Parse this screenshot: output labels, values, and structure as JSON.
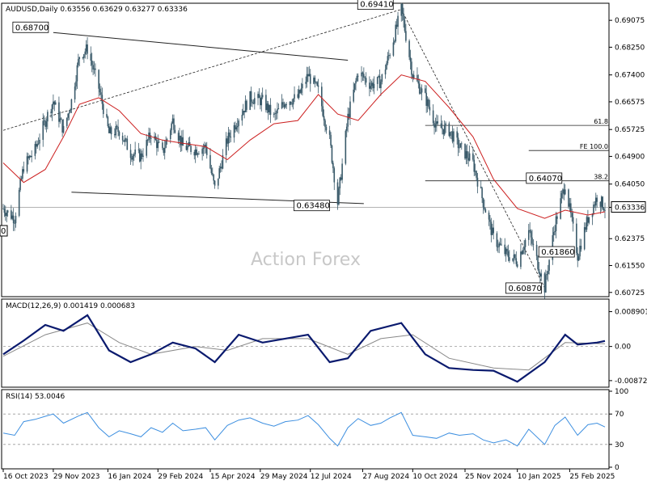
{
  "colors": {
    "candle": "#3a5a6a",
    "ma": "#cc1f1f",
    "macd": "#0a1a6e",
    "signal": "#888888",
    "rsi": "#3d8fe0",
    "grid": "#9a9a9a",
    "border": "#000000",
    "price_line": "#9a9a9a"
  },
  "chart_data": [
    {
      "type": "candlestick",
      "title": "AUDUSD,Daily  0.63556 0.63629 0.63277 0.63336",
      "symbol": "AUDUSD,Daily",
      "ohlc_last": {
        "open": "0.63556",
        "high": "0.63629",
        "low": "0.63277",
        "close": "0.63336"
      },
      "x_ticks": [
        "16 Oct 2023",
        "29 Nov 2023",
        "16 Jan 2024",
        "29 Feb 2024",
        "15 Apr 2024",
        "29 May 2024",
        "12 Jul 2024",
        "27 Aug 2024",
        "10 Oct 2024",
        "25 Nov 2024",
        "10 Jan 2025",
        "25 Feb 2025"
      ],
      "y_ticks": [
        "0.69075",
        "0.68250",
        "0.67400",
        "0.66575",
        "0.65725",
        "0.64900",
        "0.64050",
        "0.63336",
        "0.62375",
        "0.61550",
        "0.60725"
      ],
      "y_tick_values": [
        0.69075,
        0.6825,
        0.674,
        0.66575,
        0.65725,
        0.649,
        0.6405,
        0.63336,
        0.62375,
        0.6155,
        0.60725
      ],
      "ylim": [
        0.6062,
        0.6955
      ],
      "current_price": "0.63336",
      "annotations": [
        {
          "label": "0.68700",
          "date": "2023-11-29",
          "value": 0.687
        },
        {
          "label": "0.69410",
          "date": "2024-09-30",
          "value": 0.6941
        },
        {
          "label": "0.63480",
          "date": "2024-08-05",
          "value": 0.6348
        },
        {
          "label": "0.64070",
          "date": "2025-02-21",
          "value": 0.6407
        },
        {
          "label": "0.61860",
          "date": "2025-03-04",
          "value": 0.6186
        },
        {
          "label": "0.60870",
          "date": "2025-02-03",
          "value": 0.6087
        }
      ],
      "clipped_left_label": "0",
      "levels": [
        {
          "label": "61.8",
          "value": 0.6585
        },
        {
          "label": "FE 100.0",
          "value": 0.6508
        },
        {
          "label": "38.2",
          "value": 0.6415
        }
      ],
      "series": [
        {
          "name": "close",
          "points": [
            [
              "2023-10-16",
              0.633
            ],
            [
              "2023-10-26",
              0.63
            ],
            [
              "2023-11-03",
              0.646
            ],
            [
              "2023-11-13",
              0.651
            ],
            [
              "2023-11-22",
              0.66
            ],
            [
              "2023-11-29",
              0.666
            ],
            [
              "2023-12-01",
              0.664
            ],
            [
              "2023-12-08",
              0.657
            ],
            [
              "2023-12-15",
              0.666
            ],
            [
              "2023-12-22",
              0.68
            ],
            [
              "2023-12-29",
              0.682
            ],
            [
              "2024-01-08",
              0.67
            ],
            [
              "2024-01-17",
              0.656
            ],
            [
              "2024-01-26",
              0.657
            ],
            [
              "2024-02-05",
              0.65
            ],
            [
              "2024-02-14",
              0.649
            ],
            [
              "2024-02-23",
              0.656
            ],
            [
              "2024-03-04",
              0.65
            ],
            [
              "2024-03-13",
              0.66
            ],
            [
              "2024-03-22",
              0.652
            ],
            [
              "2024-04-02",
              0.651
            ],
            [
              "2024-04-11",
              0.652
            ],
            [
              "2024-04-19",
              0.639
            ],
            [
              "2024-04-30",
              0.654
            ],
            [
              "2024-05-10",
              0.661
            ],
            [
              "2024-05-20",
              0.667
            ],
            [
              "2024-05-31",
              0.666
            ],
            [
              "2024-06-10",
              0.661
            ],
            [
              "2024-06-20",
              0.666
            ],
            [
              "2024-07-01",
              0.667
            ],
            [
              "2024-07-10",
              0.674
            ],
            [
              "2024-07-19",
              0.669
            ],
            [
              "2024-07-29",
              0.654
            ],
            [
              "2024-08-05",
              0.6348
            ],
            [
              "2024-08-14",
              0.661
            ],
            [
              "2024-08-23",
              0.675
            ],
            [
              "2024-09-03",
              0.671
            ],
            [
              "2024-09-12",
              0.672
            ],
            [
              "2024-09-20",
              0.681
            ],
            [
              "2024-09-30",
              0.6941
            ],
            [
              "2024-10-10",
              0.674
            ],
            [
              "2024-10-21",
              0.667
            ],
            [
              "2024-10-31",
              0.658
            ],
            [
              "2024-11-11",
              0.657
            ],
            [
              "2024-11-20",
              0.652
            ],
            [
              "2024-12-02",
              0.647
            ],
            [
              "2024-12-11",
              0.635
            ],
            [
              "2024-12-20",
              0.624
            ],
            [
              "2024-12-31",
              0.619
            ],
            [
              "2025-01-10",
              0.617
            ],
            [
              "2025-01-20",
              0.626
            ],
            [
              "2025-02-03",
              0.6087
            ],
            [
              "2025-02-12",
              0.628
            ],
            [
              "2025-02-21",
              0.6407
            ],
            [
              "2025-03-04",
              0.6186
            ],
            [
              "2025-03-13",
              0.63
            ],
            [
              "2025-03-21",
              0.6366
            ],
            [
              "2025-03-28",
              0.63336
            ]
          ]
        },
        {
          "name": "moving_average",
          "points": [
            [
              "2023-10-16",
              0.647
            ],
            [
              "2023-11-03",
              0.641
            ],
            [
              "2023-11-22",
              0.645
            ],
            [
              "2023-12-08",
              0.655
            ],
            [
              "2023-12-22",
              0.665
            ],
            [
              "2024-01-08",
              0.667
            ],
            [
              "2024-01-26",
              0.663
            ],
            [
              "2024-02-14",
              0.656
            ],
            [
              "2024-03-04",
              0.654
            ],
            [
              "2024-03-22",
              0.653
            ],
            [
              "2024-04-11",
              0.652
            ],
            [
              "2024-04-30",
              0.648
            ],
            [
              "2024-05-20",
              0.654
            ],
            [
              "2024-06-10",
              0.659
            ],
            [
              "2024-07-01",
              0.66
            ],
            [
              "2024-07-19",
              0.668
            ],
            [
              "2024-08-05",
              0.662
            ],
            [
              "2024-08-23",
              0.66
            ],
            [
              "2024-09-12",
              0.668
            ],
            [
              "2024-09-30",
              0.674
            ],
            [
              "2024-10-21",
              0.672
            ],
            [
              "2024-11-11",
              0.664
            ],
            [
              "2024-12-02",
              0.655
            ],
            [
              "2024-12-20",
              0.642
            ],
            [
              "2025-01-10",
              0.633
            ],
            [
              "2025-02-03",
              0.63
            ],
            [
              "2025-02-21",
              0.6325
            ],
            [
              "2025-03-13",
              0.631
            ],
            [
              "2025-03-28",
              0.632
            ]
          ]
        }
      ],
      "trendlines": [
        {
          "name": "upper-channel",
          "from": [
            "2023-11-29",
            0.687
          ],
          "to": [
            "2024-08-14",
            0.6785
          ]
        },
        {
          "name": "lower-channel",
          "from": [
            "2023-12-15",
            0.638
          ],
          "to": [
            "2024-08-28",
            0.6345
          ]
        },
        {
          "name": "dotted-support",
          "from": [
            "2023-10-16",
            0.657
          ],
          "to": [
            "2024-09-30",
            0.6941
          ]
        },
        {
          "name": "dotted-decline",
          "from": [
            "2024-09-30",
            0.6941
          ],
          "to": [
            "2025-02-03",
            0.6087
          ]
        }
      ]
    },
    {
      "type": "line",
      "title": "MACD(12,26,9) 0.001419 0.000683",
      "macd_value": "0.001419",
      "signal_value": "0.000683",
      "y_ticks": [
        "0.008901",
        "0.00",
        "-0.008729"
      ],
      "y_tick_values": [
        0.008901,
        0.0,
        -0.008729
      ],
      "ylim": [
        -0.0102,
        0.0117
      ],
      "series": [
        {
          "name": "macd",
          "points": [
            [
              "2023-10-16",
              -0.002
            ],
            [
              "2023-11-03",
              0.0015
            ],
            [
              "2023-11-22",
              0.0055
            ],
            [
              "2023-12-08",
              0.004
            ],
            [
              "2023-12-29",
              0.008
            ],
            [
              "2024-01-17",
              -0.001
            ],
            [
              "2024-02-05",
              -0.004
            ],
            [
              "2024-02-23",
              -0.002
            ],
            [
              "2024-03-13",
              0.001
            ],
            [
              "2024-04-02",
              -0.0005
            ],
            [
              "2024-04-19",
              -0.004
            ],
            [
              "2024-05-10",
              0.003
            ],
            [
              "2024-05-31",
              0.001
            ],
            [
              "2024-06-20",
              0.002
            ],
            [
              "2024-07-10",
              0.003
            ],
            [
              "2024-07-29",
              -0.004
            ],
            [
              "2024-08-14",
              -0.003
            ],
            [
              "2024-09-03",
              0.004
            ],
            [
              "2024-09-30",
              0.006
            ],
            [
              "2024-10-21",
              -0.002
            ],
            [
              "2024-11-11",
              -0.0055
            ],
            [
              "2024-12-02",
              -0.006
            ],
            [
              "2024-12-20",
              -0.0062
            ],
            [
              "2025-01-10",
              -0.009
            ],
            [
              "2025-02-03",
              -0.004
            ],
            [
              "2025-02-21",
              0.003
            ],
            [
              "2025-03-04",
              0.0005
            ],
            [
              "2025-03-21",
              0.001
            ],
            [
              "2025-03-28",
              0.001419
            ]
          ]
        },
        {
          "name": "signal",
          "points": [
            [
              "2023-10-16",
              -0.0025
            ],
            [
              "2023-11-22",
              0.003
            ],
            [
              "2023-12-29",
              0.006
            ],
            [
              "2024-01-26",
              0.001
            ],
            [
              "2024-02-23",
              -0.002
            ],
            [
              "2024-04-02",
              0.0
            ],
            [
              "2024-04-30",
              -0.001
            ],
            [
              "2024-05-31",
              0.002
            ],
            [
              "2024-07-10",
              0.002
            ],
            [
              "2024-08-14",
              -0.002
            ],
            [
              "2024-09-12",
              0.002
            ],
            [
              "2024-10-10",
              0.003
            ],
            [
              "2024-11-11",
              -0.003
            ],
            [
              "2024-12-20",
              -0.0055
            ],
            [
              "2025-01-20",
              -0.006
            ],
            [
              "2025-02-21",
              0.001
            ],
            [
              "2025-03-28",
              0.000683
            ]
          ]
        }
      ]
    },
    {
      "type": "line",
      "title": "RSI(14) 53.0046",
      "rsi_value": "53.0046",
      "y_ticks": [
        "100",
        "70",
        "30",
        "0"
      ],
      "y_tick_values": [
        100,
        70,
        30,
        0
      ],
      "ylim": [
        0,
        100
      ],
      "series": [
        {
          "name": "rsi",
          "points": [
            [
              "2023-10-16",
              45
            ],
            [
              "2023-10-26",
              42
            ],
            [
              "2023-11-03",
              60
            ],
            [
              "2023-11-13",
              63
            ],
            [
              "2023-11-22",
              67
            ],
            [
              "2023-11-29",
              70
            ],
            [
              "2023-12-08",
              58
            ],
            [
              "2023-12-22",
              68
            ],
            [
              "2023-12-29",
              72
            ],
            [
              "2024-01-08",
              52
            ],
            [
              "2024-01-17",
              40
            ],
            [
              "2024-01-26",
              48
            ],
            [
              "2024-02-05",
              44
            ],
            [
              "2024-02-14",
              40
            ],
            [
              "2024-02-23",
              52
            ],
            [
              "2024-03-04",
              46
            ],
            [
              "2024-03-13",
              58
            ],
            [
              "2024-03-22",
              48
            ],
            [
              "2024-04-02",
              50
            ],
            [
              "2024-04-11",
              52
            ],
            [
              "2024-04-19",
              36
            ],
            [
              "2024-04-30",
              55
            ],
            [
              "2024-05-10",
              62
            ],
            [
              "2024-05-20",
              65
            ],
            [
              "2024-05-31",
              58
            ],
            [
              "2024-06-10",
              54
            ],
            [
              "2024-06-20",
              60
            ],
            [
              "2024-07-01",
              62
            ],
            [
              "2024-07-10",
              68
            ],
            [
              "2024-07-19",
              56
            ],
            [
              "2024-07-29",
              38
            ],
            [
              "2024-08-05",
              28
            ],
            [
              "2024-08-14",
              52
            ],
            [
              "2024-08-23",
              64
            ],
            [
              "2024-09-03",
              55
            ],
            [
              "2024-09-12",
              58
            ],
            [
              "2024-09-20",
              65
            ],
            [
              "2024-09-30",
              72
            ],
            [
              "2024-10-10",
              42
            ],
            [
              "2024-10-21",
              40
            ],
            [
              "2024-10-31",
              38
            ],
            [
              "2024-11-11",
              45
            ],
            [
              "2024-11-20",
              42
            ],
            [
              "2024-12-02",
              44
            ],
            [
              "2024-12-11",
              36
            ],
            [
              "2024-12-20",
              32
            ],
            [
              "2024-12-31",
              36
            ],
            [
              "2025-01-10",
              28
            ],
            [
              "2025-01-20",
              50
            ],
            [
              "2025-02-03",
              30
            ],
            [
              "2025-02-12",
              55
            ],
            [
              "2025-02-21",
              66
            ],
            [
              "2025-03-04",
              42
            ],
            [
              "2025-03-13",
              56
            ],
            [
              "2025-03-21",
              58
            ],
            [
              "2025-03-28",
              53
            ]
          ]
        }
      ]
    }
  ],
  "watermark": "Action Forex"
}
